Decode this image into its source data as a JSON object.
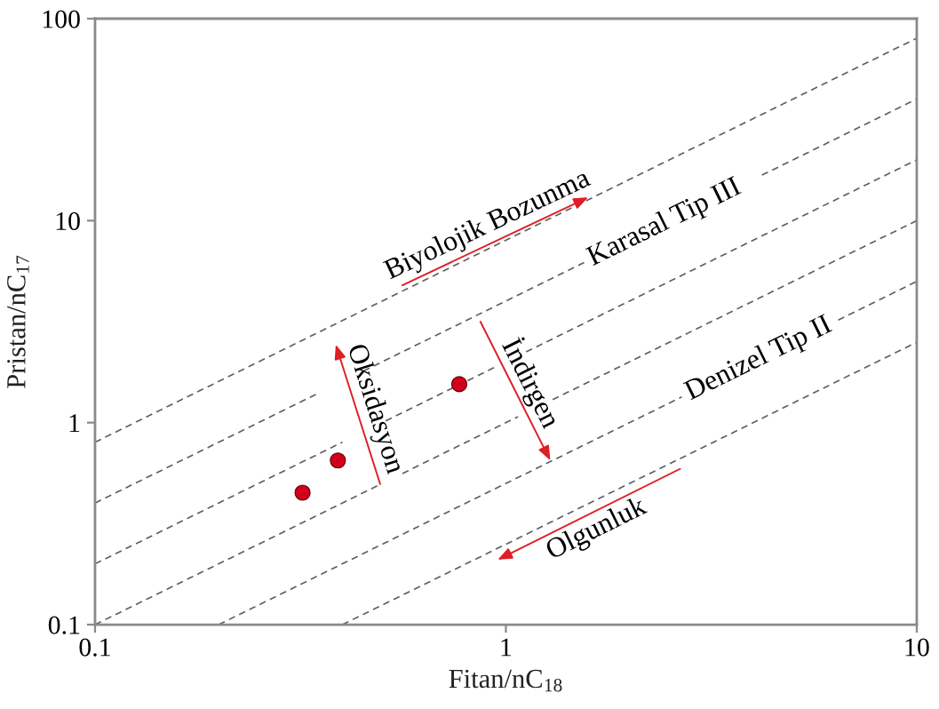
{
  "chart_data": {
    "type": "scatter",
    "xlabel": "Fitan/nC$_{18}$",
    "ylabel": "Pristan/nC$_{17}$",
    "log": "xy",
    "xlim": [
      0.1,
      10
    ],
    "ylim": [
      0.1,
      100
    ],
    "xticks": [
      0.1,
      1,
      10
    ],
    "yticks": [
      0.1,
      1,
      10,
      100
    ],
    "annotations": [
      {
        "text": "Karasal Tip III",
        "x": 1.55,
        "y": 6.2
      },
      {
        "text": "Denizel Tip II",
        "x": 2.68,
        "y": 1.34
      },
      "Biyolojik Bozunma",
      "Oksidasyon",
      "İndirgen",
      "Olgunluk"
    ],
    "series": [
      {
        "type": "line",
        "color": "#5f5f5f",
        "line_style": "dashed",
        "x": [
          0.1,
          10
        ],
        "values": [
          0.8,
          80
        ]
      },
      {
        "type": "line",
        "color": "#5f5f5f",
        "line_style": "dashed",
        "x": [
          0.1,
          0.35,
          0.4,
          0.45,
          1.55,
          2.5,
          4.2,
          10
        ],
        "values": [
          0.4,
          1.4,
          null,
          1.8,
          6.2,
          null,
          16.8,
          40
        ]
      },
      {
        "type": "line",
        "color": "#5f5f5f",
        "line_style": "dashed",
        "x": [
          0.1,
          0.4,
          0.45,
          0.51,
          0.94,
          1.0,
          1.12,
          10
        ],
        "values": [
          0.2,
          0.8,
          null,
          1.02,
          1.88,
          null,
          2.24,
          20
        ]
      },
      {
        "type": "line",
        "color": "#5f5f5f",
        "line_style": "dashed",
        "x": [
          0.1,
          0.49,
          0.52,
          0.56,
          1.07,
          1.2,
          1.3,
          10
        ],
        "values": [
          0.1,
          0.49,
          null,
          0.56,
          1.07,
          null,
          1.3,
          10
        ]
      },
      {
        "type": "line",
        "color": "#5f5f5f",
        "line_style": "dashed",
        "x": [
          0.2,
          2.68,
          4.0,
          6.44,
          10
        ],
        "values": [
          0.1,
          1.34,
          null,
          3.22,
          5
        ]
      },
      {
        "type": "line",
        "color": "#5f5f5f",
        "line_style": "dashed",
        "x": [
          0.4,
          10
        ],
        "values": [
          0.1,
          2.5
        ]
      },
      {
        "color": "#d1001c",
        "marker": "circle",
        "x": [
          0.32,
          0.39,
          0.77
        ],
        "values": [
          0.45,
          0.65,
          1.55
        ]
      }
    ]
  }
}
